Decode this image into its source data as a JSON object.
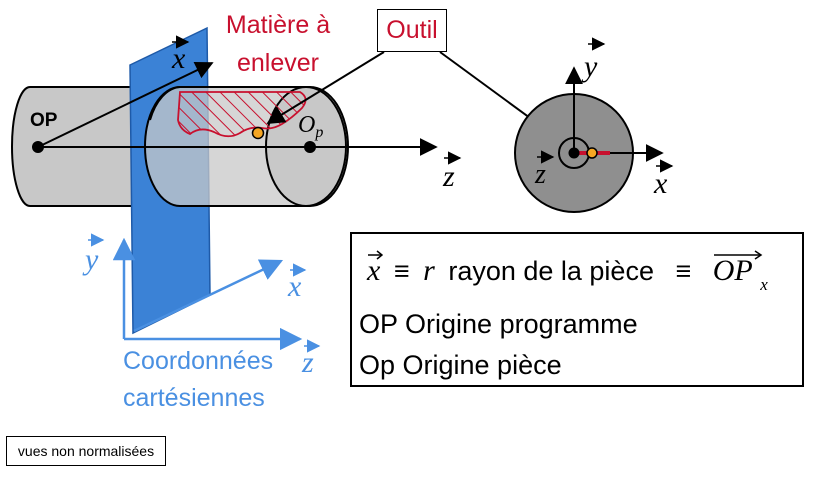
{
  "labels": {
    "matiere_line1": "Matière à",
    "matiere_line2": "enlever",
    "outil": "Outil",
    "op": "OP",
    "op_origin_main": "O",
    "op_origin_sub": "p",
    "axis_x": "x",
    "axis_y": "y",
    "axis_z": "z",
    "coord_line1": "Coordonnées",
    "coord_line2": "cartésiennes",
    "note": "vues non normalisées"
  },
  "legend": {
    "line1_x": "x",
    "line1_equiv": "≡",
    "line1_r": "r",
    "line1_text": "rayon de la pièce",
    "line1_equiv2": "≡",
    "line1_op": "OP",
    "line1_op_sub": "x",
    "line2": "OP Origine programme",
    "line3": "Op Origine pièce"
  },
  "colors": {
    "blue_plane": "#3b82d6",
    "blue_axes": "#4a90e2",
    "red": "#c8102e",
    "gray_part": "#c8c8c8",
    "gray_disc": "#8f8f8f",
    "orange": "#f5a623"
  }
}
